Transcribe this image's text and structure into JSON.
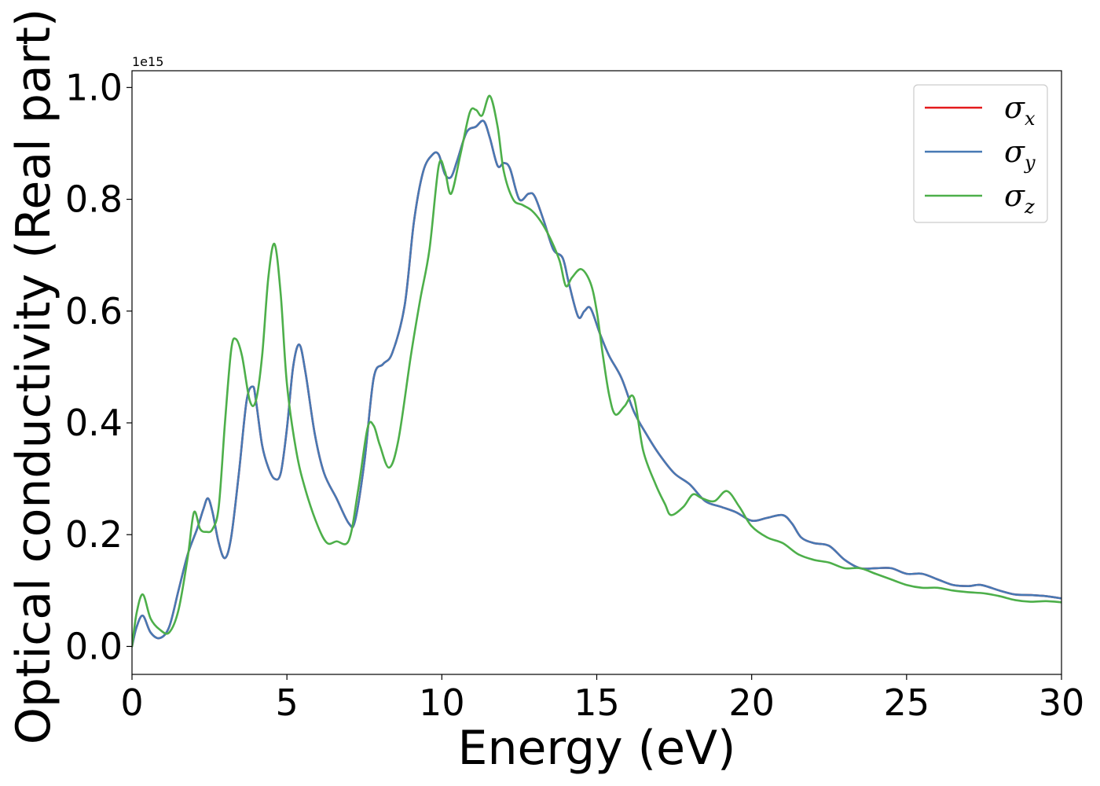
{
  "chart_data": {
    "type": "line",
    "xlabel": "Energy (eV)",
    "ylabel": "Optical conductivity (Real part)",
    "y_offset_label": "1e15",
    "xlim": [
      0,
      30
    ],
    "ylim": [
      -0.05,
      1.03
    ],
    "x_ticks": [
      0,
      5,
      10,
      15,
      20,
      25,
      30
    ],
    "x_tick_labels": [
      "0",
      "5",
      "10",
      "15",
      "20",
      "25",
      "30"
    ],
    "y_ticks": [
      0.0,
      0.2,
      0.4,
      0.6,
      0.8,
      1.0
    ],
    "y_tick_labels": [
      "0.0",
      "0.2",
      "0.4",
      "0.6",
      "0.8",
      "1.0"
    ],
    "grid": false,
    "legend_position": "top-right",
    "series": [
      {
        "name": "σx",
        "symbol": "σ",
        "subscript": "x",
        "color": "#e41a1c",
        "x": [
          0.0,
          0.15,
          0.35,
          0.6,
          0.9,
          1.2,
          1.5,
          1.8,
          2.1,
          2.3,
          2.45,
          2.6,
          2.8,
          3.0,
          3.2,
          3.45,
          3.7,
          3.9,
          4.0,
          4.2,
          4.4,
          4.6,
          4.8,
          5.0,
          5.2,
          5.4,
          5.6,
          5.9,
          6.2,
          6.6,
          7.0,
          7.2,
          7.5,
          7.8,
          8.1,
          8.4,
          8.8,
          9.1,
          9.4,
          9.7,
          9.9,
          10.1,
          10.3,
          10.5,
          10.8,
          11.1,
          11.35,
          11.55,
          11.8,
          12.0,
          12.2,
          12.5,
          12.8,
          13.0,
          13.3,
          13.6,
          13.9,
          14.1,
          14.4,
          14.6,
          14.8,
          15.1,
          15.4,
          15.8,
          16.2,
          16.6,
          17.0,
          17.5,
          18.0,
          18.5,
          19.0,
          19.5,
          20.0,
          20.5,
          21.0,
          21.3,
          21.6,
          22.0,
          22.5,
          23.0,
          23.5,
          24.0,
          24.5,
          25.0,
          25.5,
          26.0,
          26.5,
          27.0,
          27.4,
          28.0,
          28.5,
          29.0,
          29.5,
          30.0
        ],
        "values": [
          0.0,
          0.035,
          0.055,
          0.025,
          0.015,
          0.035,
          0.1,
          0.165,
          0.21,
          0.245,
          0.265,
          0.24,
          0.185,
          0.158,
          0.195,
          0.31,
          0.44,
          0.465,
          0.44,
          0.36,
          0.32,
          0.3,
          0.31,
          0.39,
          0.5,
          0.54,
          0.49,
          0.38,
          0.31,
          0.265,
          0.22,
          0.225,
          0.33,
          0.48,
          0.505,
          0.525,
          0.61,
          0.76,
          0.85,
          0.88,
          0.88,
          0.845,
          0.84,
          0.87,
          0.92,
          0.93,
          0.94,
          0.91,
          0.86,
          0.865,
          0.855,
          0.8,
          0.81,
          0.805,
          0.76,
          0.71,
          0.695,
          0.65,
          0.59,
          0.6,
          0.605,
          0.56,
          0.52,
          0.48,
          0.42,
          0.38,
          0.345,
          0.31,
          0.29,
          0.26,
          0.25,
          0.24,
          0.225,
          0.23,
          0.235,
          0.22,
          0.195,
          0.185,
          0.18,
          0.155,
          0.14,
          0.14,
          0.14,
          0.13,
          0.13,
          0.12,
          0.11,
          0.108,
          0.11,
          0.1,
          0.093,
          0.092,
          0.09,
          0.086
        ]
      },
      {
        "name": "σy",
        "symbol": "σ",
        "subscript": "y",
        "color": "#4779b4",
        "x": [
          0.0,
          0.15,
          0.35,
          0.6,
          0.9,
          1.2,
          1.5,
          1.8,
          2.1,
          2.3,
          2.45,
          2.6,
          2.8,
          3.0,
          3.2,
          3.45,
          3.7,
          3.9,
          4.0,
          4.2,
          4.4,
          4.6,
          4.8,
          5.0,
          5.2,
          5.4,
          5.6,
          5.9,
          6.2,
          6.6,
          7.0,
          7.2,
          7.5,
          7.8,
          8.1,
          8.4,
          8.8,
          9.1,
          9.4,
          9.7,
          9.9,
          10.1,
          10.3,
          10.5,
          10.8,
          11.1,
          11.35,
          11.55,
          11.8,
          12.0,
          12.2,
          12.5,
          12.8,
          13.0,
          13.3,
          13.6,
          13.9,
          14.1,
          14.4,
          14.6,
          14.8,
          15.1,
          15.4,
          15.8,
          16.2,
          16.6,
          17.0,
          17.5,
          18.0,
          18.5,
          19.0,
          19.5,
          20.0,
          20.5,
          21.0,
          21.3,
          21.6,
          22.0,
          22.5,
          23.0,
          23.5,
          24.0,
          24.5,
          25.0,
          25.5,
          26.0,
          26.5,
          27.0,
          27.4,
          28.0,
          28.5,
          29.0,
          29.5,
          30.0
        ],
        "values": [
          0.0,
          0.035,
          0.055,
          0.025,
          0.015,
          0.035,
          0.1,
          0.165,
          0.21,
          0.245,
          0.265,
          0.24,
          0.185,
          0.158,
          0.195,
          0.31,
          0.44,
          0.465,
          0.44,
          0.36,
          0.32,
          0.3,
          0.31,
          0.39,
          0.5,
          0.54,
          0.49,
          0.38,
          0.31,
          0.265,
          0.22,
          0.225,
          0.33,
          0.48,
          0.505,
          0.525,
          0.61,
          0.76,
          0.85,
          0.88,
          0.88,
          0.845,
          0.84,
          0.87,
          0.92,
          0.93,
          0.94,
          0.91,
          0.86,
          0.865,
          0.855,
          0.8,
          0.81,
          0.805,
          0.76,
          0.71,
          0.695,
          0.65,
          0.59,
          0.6,
          0.605,
          0.56,
          0.52,
          0.48,
          0.42,
          0.38,
          0.345,
          0.31,
          0.29,
          0.26,
          0.25,
          0.24,
          0.225,
          0.23,
          0.235,
          0.22,
          0.195,
          0.185,
          0.18,
          0.155,
          0.14,
          0.14,
          0.14,
          0.13,
          0.13,
          0.12,
          0.11,
          0.108,
          0.11,
          0.1,
          0.093,
          0.092,
          0.09,
          0.086
        ]
      },
      {
        "name": "σz",
        "symbol": "σ",
        "subscript": "z",
        "color": "#4daf4a",
        "x": [
          0.0,
          0.15,
          0.35,
          0.6,
          0.9,
          1.2,
          1.5,
          1.8,
          2.0,
          2.2,
          2.4,
          2.6,
          2.8,
          3.0,
          3.2,
          3.35,
          3.55,
          3.8,
          4.0,
          4.2,
          4.4,
          4.6,
          4.8,
          5.0,
          5.3,
          5.6,
          6.0,
          6.3,
          6.6,
          7.0,
          7.3,
          7.6,
          7.8,
          8.0,
          8.3,
          8.6,
          9.0,
          9.3,
          9.6,
          9.9,
          10.1,
          10.3,
          10.6,
          10.9,
          11.1,
          11.3,
          11.55,
          11.8,
          12.0,
          12.3,
          12.6,
          12.9,
          13.2,
          13.5,
          13.8,
          14.0,
          14.2,
          14.5,
          14.8,
          15.0,
          15.2,
          15.4,
          15.6,
          15.9,
          16.2,
          16.5,
          16.9,
          17.2,
          17.4,
          17.8,
          18.1,
          18.4,
          18.8,
          19.2,
          19.6,
          20.0,
          20.5,
          21.0,
          21.5,
          22.0,
          22.5,
          23.0,
          23.5,
          24.0,
          24.5,
          25.0,
          25.5,
          26.0,
          26.5,
          27.0,
          27.5,
          28.0,
          28.5,
          29.0,
          29.5,
          30.0
        ],
        "values": [
          0.0,
          0.06,
          0.093,
          0.05,
          0.03,
          0.025,
          0.065,
          0.16,
          0.24,
          0.21,
          0.205,
          0.21,
          0.25,
          0.4,
          0.53,
          0.55,
          0.52,
          0.44,
          0.44,
          0.52,
          0.66,
          0.72,
          0.63,
          0.47,
          0.35,
          0.28,
          0.215,
          0.185,
          0.188,
          0.19,
          0.28,
          0.39,
          0.395,
          0.36,
          0.32,
          0.37,
          0.52,
          0.62,
          0.71,
          0.86,
          0.85,
          0.81,
          0.88,
          0.955,
          0.96,
          0.95,
          0.985,
          0.93,
          0.85,
          0.8,
          0.79,
          0.78,
          0.76,
          0.73,
          0.69,
          0.645,
          0.66,
          0.675,
          0.65,
          0.6,
          0.52,
          0.45,
          0.415,
          0.43,
          0.445,
          0.35,
          0.29,
          0.255,
          0.235,
          0.25,
          0.272,
          0.265,
          0.26,
          0.278,
          0.25,
          0.215,
          0.195,
          0.185,
          0.165,
          0.155,
          0.15,
          0.14,
          0.14,
          0.13,
          0.12,
          0.11,
          0.105,
          0.105,
          0.1,
          0.097,
          0.095,
          0.09,
          0.083,
          0.08,
          0.081,
          0.079
        ]
      }
    ]
  }
}
